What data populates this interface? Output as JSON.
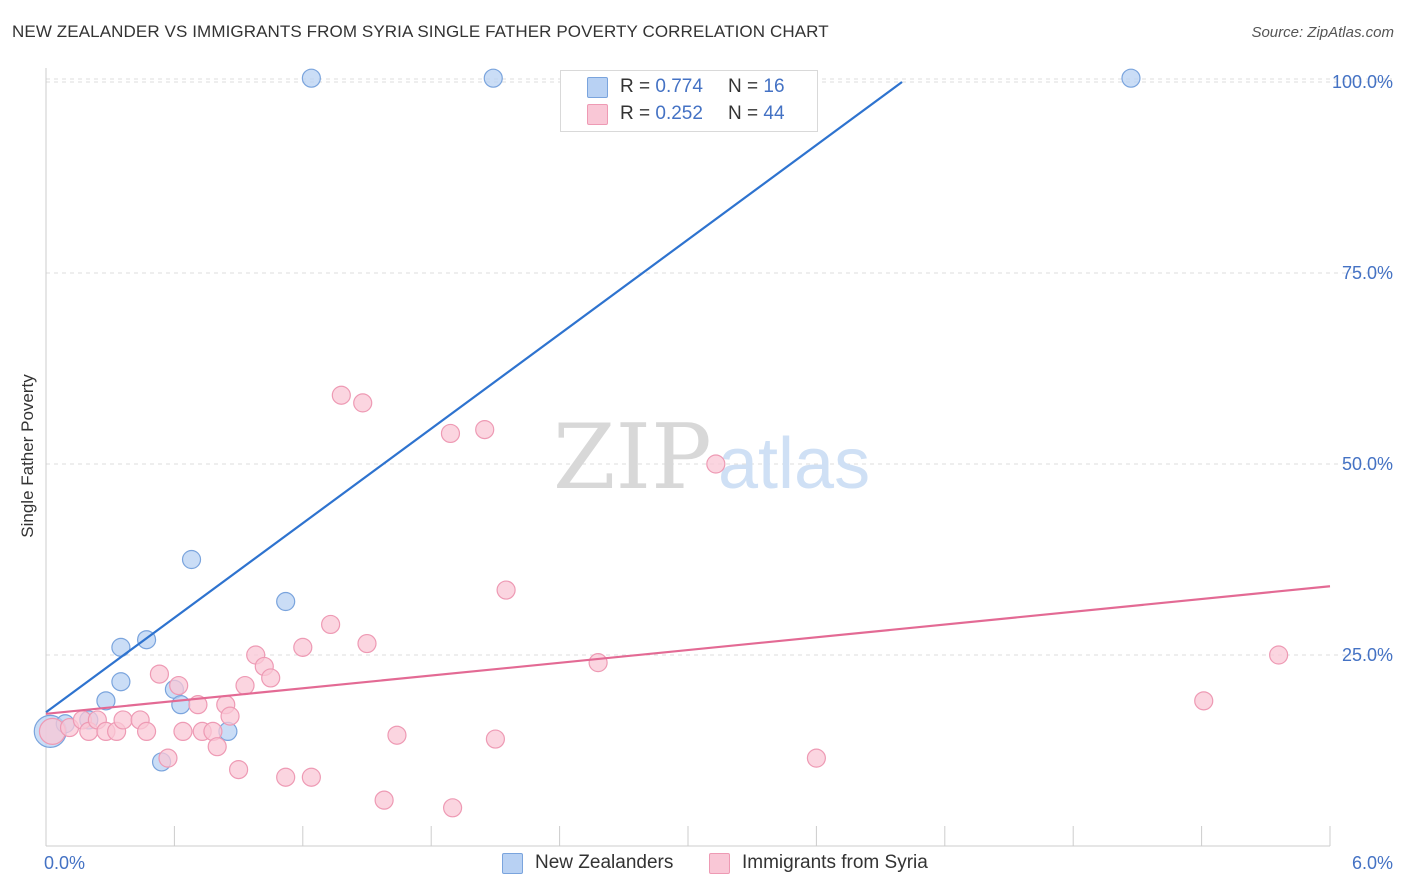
{
  "title": "NEW ZEALANDER VS IMMIGRANTS FROM SYRIA SINGLE FATHER POVERTY CORRELATION CHART",
  "source": "Source: ZipAtlas.com",
  "watermark": {
    "zip": "ZIP",
    "atlas": "atlas"
  },
  "colors": {
    "blue_fill": "#b8d1f3",
    "blue_stroke": "#7aa4dd",
    "blue_line": "#2e73cf",
    "pink_fill": "#f9c7d6",
    "pink_stroke": "#ee9ab4",
    "pink_line": "#e36a94",
    "axis_text": "#4472c4",
    "grid": "#dddddd"
  },
  "legend_top": {
    "rows": [
      {
        "r_label": "R = ",
        "r_value": "0.774",
        "n_label": "N = ",
        "n_value": "16"
      },
      {
        "r_label": "R = ",
        "r_value": "0.252",
        "n_label": "N = ",
        "n_value": "44"
      }
    ]
  },
  "legend_bottom": [
    "New Zealanders",
    "Immigrants from Syria"
  ],
  "chart_data": {
    "type": "scatter",
    "title": "NEW ZEALANDER VS IMMIGRANTS FROM SYRIA SINGLE FATHER POVERTY CORRELATION CHART",
    "xlabel": "",
    "ylabel": "Single Father Poverty",
    "xlim": [
      0,
      6
    ],
    "ylim": [
      0,
      105
    ],
    "x_tick_labels": [
      "0.0%",
      "6.0%"
    ],
    "y_ticks": [
      25,
      50,
      75,
      100
    ],
    "y_tick_labels": [
      "25.0%",
      "50.0%",
      "75.0%",
      "100.0%"
    ],
    "grid": true,
    "legend_position": "top-center",
    "series": [
      {
        "name": "New Zealanders",
        "R": 0.774,
        "N": 16,
        "trend": {
          "x0": 0.0,
          "y0": 17.5,
          "x1": 4.0,
          "y1": 100
        },
        "points": [
          [
            0.02,
            15.0,
            16
          ],
          [
            0.09,
            16.0,
            9
          ],
          [
            0.2,
            16.5,
            9
          ],
          [
            0.35,
            26.0,
            9
          ],
          [
            0.28,
            19.0,
            9
          ],
          [
            0.47,
            27.0,
            9
          ],
          [
            0.35,
            21.5,
            9
          ],
          [
            0.54,
            11.0,
            9
          ],
          [
            0.6,
            20.5,
            9
          ],
          [
            0.63,
            18.5,
            9
          ],
          [
            0.68,
            37.5,
            9
          ],
          [
            0.85,
            15.0,
            9
          ],
          [
            1.12,
            32.0,
            9
          ],
          [
            1.24,
            100.5,
            9
          ],
          [
            2.09,
            100.5,
            9
          ],
          [
            5.07,
            100.5,
            9
          ]
        ]
      },
      {
        "name": "Immigrants from Syria",
        "R": 0.252,
        "N": 44,
        "trend": {
          "x0": 0.0,
          "y0": 17.3,
          "x1": 6.0,
          "y1": 34.0
        },
        "points": [
          [
            0.03,
            15.0,
            13
          ],
          [
            0.11,
            15.5,
            9
          ],
          [
            0.17,
            16.5,
            9
          ],
          [
            0.2,
            15.0,
            9
          ],
          [
            0.24,
            16.5,
            9
          ],
          [
            0.28,
            15.0,
            9
          ],
          [
            0.33,
            15.0,
            9
          ],
          [
            0.36,
            16.5,
            9
          ],
          [
            0.44,
            16.5,
            9
          ],
          [
            0.47,
            15.0,
            9
          ],
          [
            0.53,
            22.5,
            9
          ],
          [
            0.57,
            11.5,
            9
          ],
          [
            0.62,
            21.0,
            9
          ],
          [
            0.64,
            15.0,
            9
          ],
          [
            0.71,
            18.5,
            9
          ],
          [
            0.73,
            15.0,
            9
          ],
          [
            0.78,
            15.0,
            9
          ],
          [
            0.8,
            13.0,
            9
          ],
          [
            0.84,
            18.5,
            9
          ],
          [
            0.86,
            17.0,
            9
          ],
          [
            0.9,
            10.0,
            9
          ],
          [
            0.93,
            21.0,
            9
          ],
          [
            0.98,
            25.0,
            9
          ],
          [
            1.02,
            23.5,
            9
          ],
          [
            1.05,
            22.0,
            9
          ],
          [
            1.12,
            9.0,
            9
          ],
          [
            1.24,
            9.0,
            9
          ],
          [
            1.2,
            26.0,
            9
          ],
          [
            1.33,
            29.0,
            9
          ],
          [
            1.38,
            59.0,
            9
          ],
          [
            1.48,
            58.0,
            9
          ],
          [
            1.5,
            26.5,
            9
          ],
          [
            1.58,
            6.0,
            9
          ],
          [
            1.64,
            14.5,
            9
          ],
          [
            1.89,
            54.0,
            9
          ],
          [
            1.9,
            5.0,
            9
          ],
          [
            2.05,
            54.5,
            9
          ],
          [
            2.1,
            14.0,
            9
          ],
          [
            2.15,
            33.5,
            9
          ],
          [
            2.58,
            24.0,
            9
          ],
          [
            3.13,
            50.0,
            9
          ],
          [
            3.6,
            11.5,
            9
          ],
          [
            5.41,
            19.0,
            9
          ],
          [
            5.76,
            25.0,
            9
          ]
        ]
      }
    ]
  }
}
